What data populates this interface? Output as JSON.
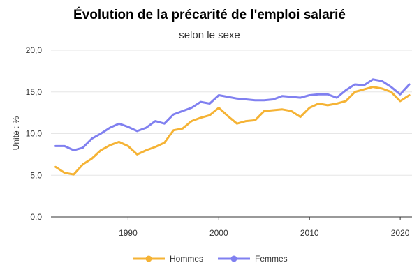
{
  "chart_data": {
    "type": "line",
    "title": "Évolution de la précarité de l'emploi salarié",
    "subtitle": "selon le sexe",
    "ylabel": "Unité : %",
    "xlabel": "",
    "ylim": [
      0,
      20
    ],
    "xlim": [
      1982,
      2021
    ],
    "yticks": [
      0,
      5,
      10,
      15,
      20
    ],
    "ytick_labels": [
      "0,0",
      "5,0",
      "10,0",
      "15,0",
      "20,0"
    ],
    "xticks": [
      1990,
      2000,
      2010,
      2020
    ],
    "xtick_labels": [
      "1990",
      "2000",
      "2010",
      "2020"
    ],
    "grid": true,
    "legend_position": "bottom",
    "x": [
      1982,
      1983,
      1984,
      1985,
      1986,
      1987,
      1988,
      1989,
      1990,
      1991,
      1992,
      1993,
      1994,
      1995,
      1996,
      1997,
      1998,
      1999,
      2000,
      2001,
      2002,
      2003,
      2004,
      2005,
      2006,
      2007,
      2008,
      2009,
      2010,
      2011,
      2012,
      2013,
      2014,
      2015,
      2016,
      2017,
      2018,
      2019,
      2020,
      2021
    ],
    "series": [
      {
        "name": "Hommes",
        "color": "#f5b335",
        "values": [
          6.0,
          5.3,
          5.1,
          6.3,
          7.0,
          8.0,
          8.6,
          9.0,
          8.5,
          7.5,
          8.0,
          8.4,
          8.9,
          10.4,
          10.6,
          11.5,
          11.9,
          12.2,
          13.1,
          12.1,
          11.2,
          11.5,
          11.6,
          12.7,
          12.8,
          12.9,
          12.7,
          12.0,
          13.1,
          13.6,
          13.4,
          13.6,
          13.9,
          15.0,
          15.3,
          15.6,
          15.4,
          15.0,
          13.9,
          14.6
        ]
      },
      {
        "name": "Femmes",
        "color": "#8080f0",
        "values": [
          8.5,
          8.5,
          8.0,
          8.3,
          9.4,
          10.0,
          10.7,
          11.2,
          10.8,
          10.3,
          10.7,
          11.5,
          11.2,
          12.3,
          12.7,
          13.1,
          13.8,
          13.6,
          14.6,
          14.4,
          14.2,
          14.1,
          14.0,
          14.0,
          14.1,
          14.5,
          14.4,
          14.3,
          14.6,
          14.7,
          14.7,
          14.3,
          15.2,
          15.9,
          15.8,
          16.5,
          16.3,
          15.6,
          14.7,
          15.9
        ]
      }
    ]
  }
}
